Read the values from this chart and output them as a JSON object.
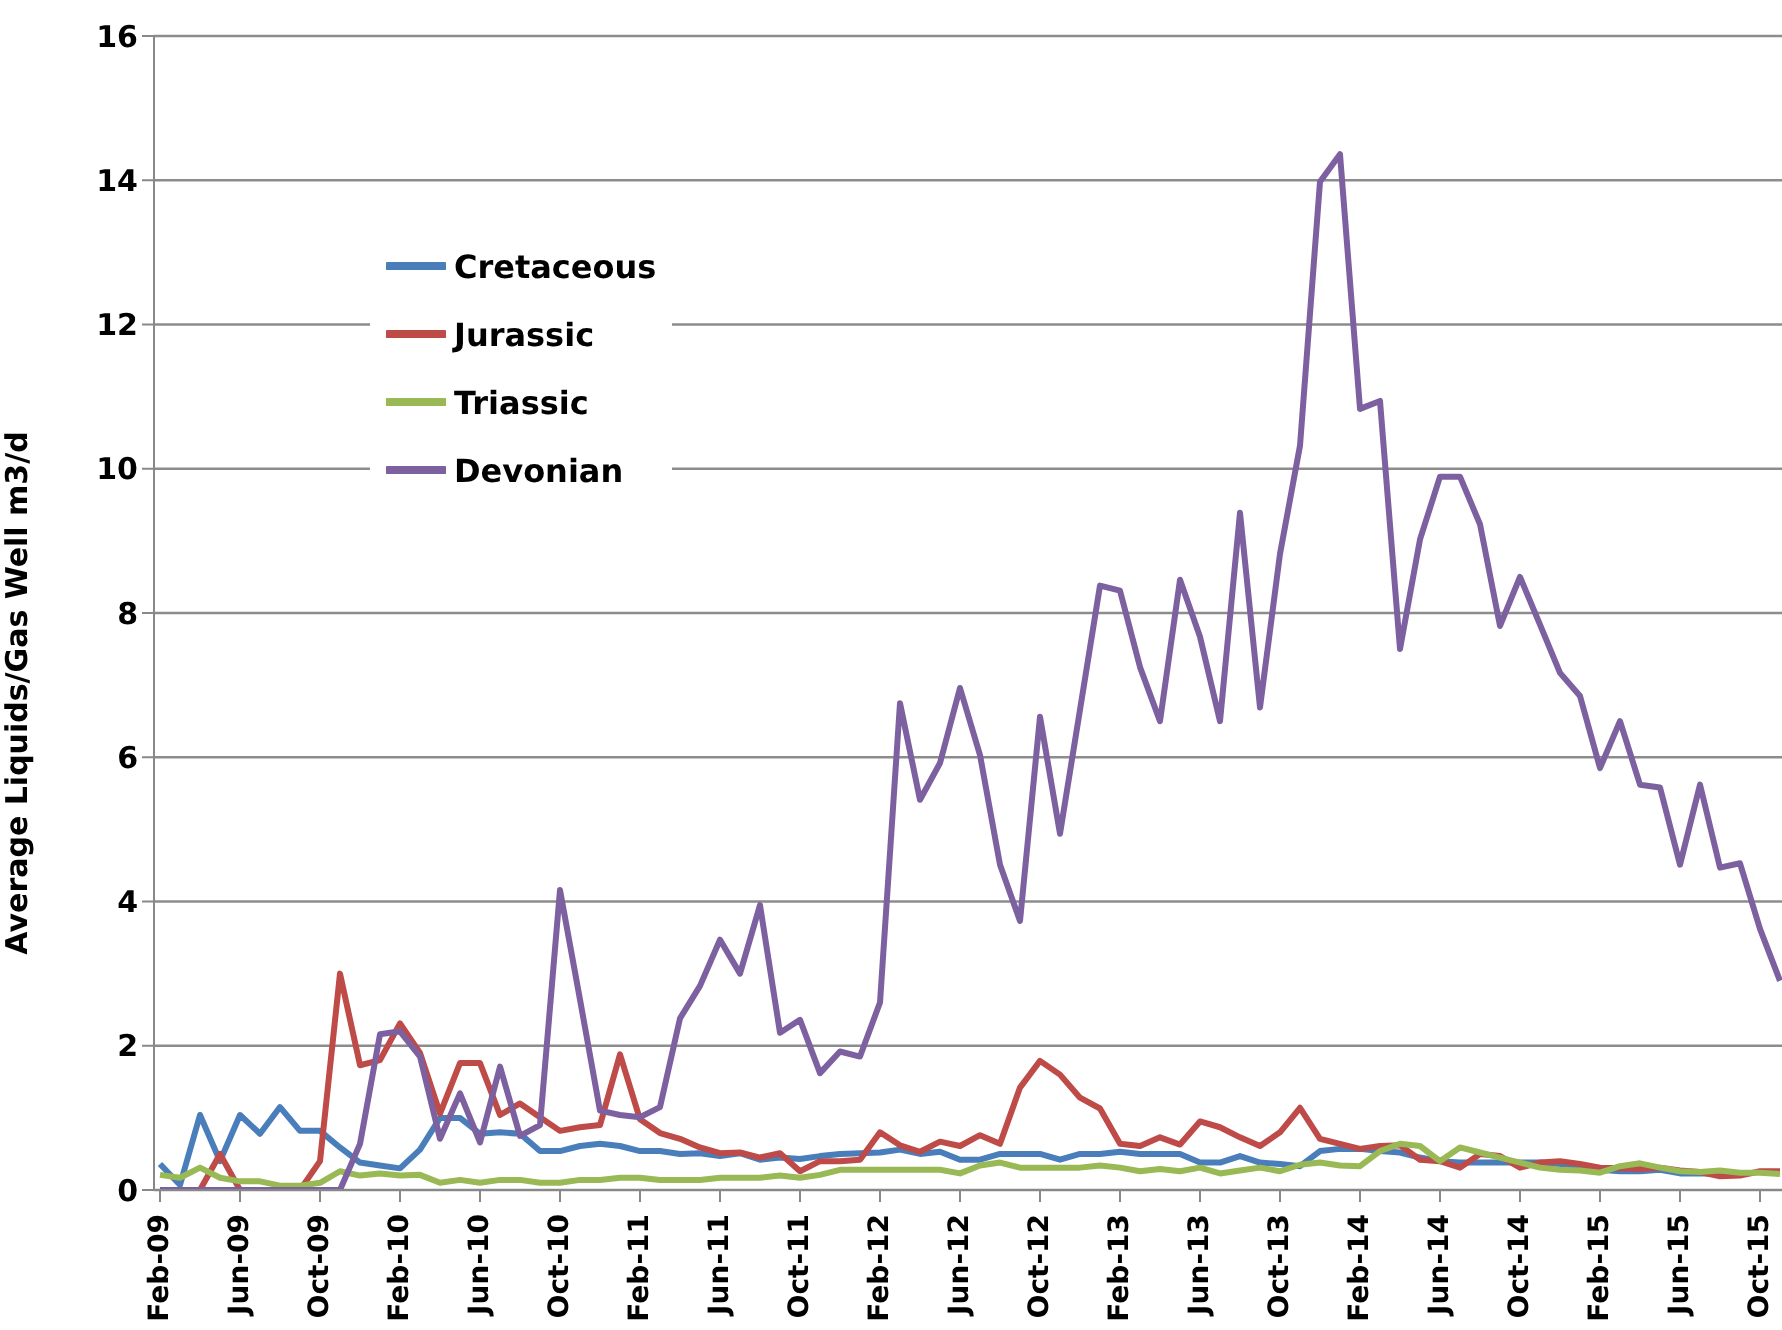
{
  "chart_data": {
    "type": "line",
    "ylabel": "Average Liquids/Gas Well m3/d",
    "categories": [
      "Feb-09",
      null,
      null,
      null,
      "Jun-09",
      null,
      null,
      null,
      "Oct-09",
      null,
      null,
      null,
      "Feb-10",
      null,
      null,
      null,
      "Jun-10",
      null,
      null,
      null,
      "Oct-10",
      null,
      null,
      null,
      "Feb-11",
      null,
      null,
      null,
      "Jun-11",
      null,
      null,
      null,
      "Oct-11",
      null,
      null,
      null,
      "Feb-12",
      null,
      null,
      null,
      "Jun-12",
      null,
      null,
      null,
      "Oct-12",
      null,
      null,
      null,
      "Feb-13",
      null,
      null,
      null,
      "Jun-13",
      null,
      null,
      null,
      "Oct-13",
      null,
      null,
      null,
      "Feb-14",
      null,
      null,
      null,
      "Jun-14",
      null,
      null,
      null,
      "Oct-14",
      null,
      null,
      null,
      "Feb-15",
      null,
      null,
      null,
      "Jun-15",
      null,
      null,
      null,
      "Oct-15",
      null
    ],
    "series": [
      {
        "name": "Cretaceous",
        "color": "#4a7ebb",
        "values": [
          0.36,
          0.07,
          1.04,
          0.4,
          1.04,
          0.78,
          1.15,
          0.82,
          0.82,
          0.59,
          0.38,
          0.34,
          0.3,
          0.56,
          1.0,
          1.0,
          0.78,
          0.8,
          0.78,
          0.54,
          0.54,
          0.61,
          0.64,
          0.61,
          0.54,
          0.54,
          0.5,
          0.51,
          0.47,
          0.51,
          0.42,
          0.45,
          0.43,
          0.47,
          0.5,
          0.51,
          0.52,
          0.56,
          0.5,
          0.53,
          0.42,
          0.42,
          0.5,
          0.5,
          0.5,
          0.42,
          0.5,
          0.5,
          0.53,
          0.5,
          0.5,
          0.5,
          0.38,
          0.38,
          0.47,
          0.38,
          0.36,
          0.33,
          0.54,
          0.57,
          0.57,
          0.54,
          0.52,
          0.45,
          0.4,
          0.38,
          0.38,
          0.38,
          0.38,
          0.38,
          0.36,
          0.31,
          0.28,
          0.26,
          0.26,
          0.28,
          0.23,
          0.23,
          0.23,
          0.23,
          null,
          null
        ]
      },
      {
        "name": "Jurassic",
        "color": "#be4b48",
        "values": [
          0,
          0,
          0,
          0.5,
          0,
          0,
          0,
          0,
          0.4,
          3.0,
          1.73,
          1.8,
          2.31,
          1.9,
          1.06,
          1.76,
          1.76,
          1.04,
          1.2,
          1.01,
          0.82,
          0.87,
          0.9,
          1.88,
          0.98,
          0.79,
          0.71,
          0.59,
          0.51,
          0.52,
          0.45,
          0.51,
          0.26,
          0.4,
          0.4,
          0.42,
          0.8,
          0.62,
          0.53,
          0.67,
          0.61,
          0.76,
          0.64,
          1.42,
          1.79,
          1.6,
          1.28,
          1.13,
          0.64,
          0.61,
          0.73,
          0.63,
          0.95,
          0.87,
          0.73,
          0.61,
          0.8,
          1.14,
          0.71,
          0.64,
          0.57,
          0.61,
          0.62,
          0.42,
          0.4,
          0.31,
          0.5,
          0.47,
          0.31,
          0.38,
          0.4,
          0.36,
          0.31,
          0.3,
          0.29,
          0.31,
          0.27,
          0.25,
          0.19,
          0.2,
          0.26,
          0.26
        ]
      },
      {
        "name": "Triassic",
        "color": "#98b954",
        "values": [
          0.21,
          0.17,
          0.31,
          0.17,
          0.12,
          0.12,
          0.06,
          0.06,
          0.1,
          0.26,
          0.2,
          0.23,
          0.2,
          0.21,
          0.1,
          0.14,
          0.1,
          0.14,
          0.14,
          0.1,
          0.1,
          0.14,
          0.14,
          0.17,
          0.17,
          0.14,
          0.14,
          0.14,
          0.17,
          0.17,
          0.17,
          0.2,
          0.17,
          0.21,
          0.28,
          0.28,
          0.28,
          0.28,
          0.28,
          0.28,
          0.23,
          0.34,
          0.38,
          0.31,
          0.31,
          0.31,
          0.31,
          0.34,
          0.31,
          0.26,
          0.29,
          0.26,
          0.31,
          0.23,
          0.27,
          0.31,
          0.26,
          0.35,
          0.38,
          0.34,
          0.33,
          0.54,
          0.64,
          0.61,
          0.4,
          0.59,
          0.52,
          0.45,
          0.38,
          0.31,
          0.28,
          0.27,
          0.24,
          0.33,
          0.37,
          0.31,
          0.26,
          0.25,
          0.27,
          0.24,
          0.24,
          0.22
        ]
      },
      {
        "name": "Devonian",
        "color": "#7d60a0",
        "values": [
          0,
          0,
          0,
          0,
          0,
          0,
          0,
          0,
          0,
          0,
          0.64,
          2.16,
          2.2,
          1.85,
          0.71,
          1.34,
          0.66,
          1.71,
          0.75,
          0.9,
          4.16,
          2.64,
          1.1,
          1.04,
          1.01,
          1.15,
          2.38,
          2.83,
          3.47,
          3.0,
          3.95,
          2.18,
          2.36,
          1.62,
          1.92,
          1.85,
          2.6,
          6.75,
          5.41,
          5.92,
          6.96,
          6.03,
          4.51,
          3.73,
          6.56,
          4.94,
          6.66,
          8.38,
          8.31,
          7.25,
          6.5,
          8.46,
          7.67,
          6.5,
          9.39,
          6.69,
          8.82,
          10.32,
          13.98,
          14.36,
          10.83,
          10.94,
          7.5,
          9.02,
          9.89,
          9.89,
          9.23,
          7.82,
          8.5,
          7.84,
          7.17,
          6.85,
          5.85,
          6.5,
          5.62,
          5.58,
          4.51,
          5.62,
          4.47,
          4.53,
          3.62,
          2.9
        ]
      }
    ],
    "ylim": [
      0,
      16
    ],
    "yticks": [
      0,
      2,
      4,
      6,
      8,
      10,
      12,
      14,
      16
    ],
    "grid": "y",
    "legend": "top left",
    "marker": "none",
    "line_style": "solid"
  }
}
